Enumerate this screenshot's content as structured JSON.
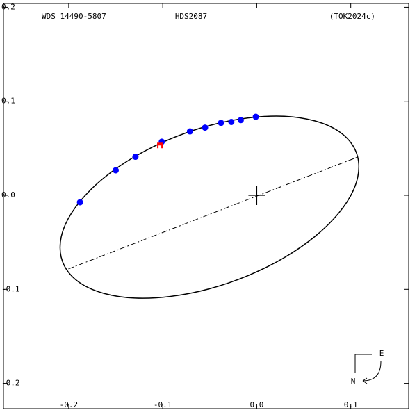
{
  "chart_data": {
    "type": "orbit",
    "title": "WDS 14490-5807",
    "subtitle": "HDS2087",
    "reference": "(TOK2024c)",
    "compass": {
      "east": "E",
      "north": "N"
    },
    "xlim": [
      -0.2694,
      0.1616
    ],
    "ylim": [
      -0.2269,
      0.204
    ],
    "xticks": [
      -0.2,
      -0.1,
      {
        "value": 0,
        "label": "0.0"
      },
      0.1
    ],
    "yticks": [
      0.2,
      0.1,
      {
        "value": 0,
        "label": "0.0"
      },
      -0.1,
      -0.2
    ],
    "orbit": {
      "color": "#000000",
      "x": [
        0.1086,
        0.1032,
        0.0873,
        0.062,
        0.0292,
        -0.0091,
        -0.0503,
        -0.0915,
        -0.1298,
        -0.1626,
        -0.1879,
        -0.2038,
        -0.2092,
        -0.2038,
        -0.1879,
        -0.1626,
        -0.1298,
        -0.0915,
        -0.0503,
        -0.0091,
        0.0292,
        0.062,
        0.0873,
        0.1032
      ],
      "y": [
        0.0303,
        0.0513,
        0.068,
        0.0791,
        0.0841,
        0.0823,
        0.0742,
        0.0601,
        0.0411,
        0.0185,
        -0.0064,
        -0.0315,
        -0.0555,
        -0.0765,
        -0.0932,
        -0.1043,
        -0.1093,
        -0.1075,
        -0.0994,
        -0.0853,
        -0.0663,
        -0.0437,
        -0.0188,
        0.0063
      ]
    },
    "line_of_apsides": {
      "color": "#000000",
      "x": [
        -0.2003,
        0.1072
      ],
      "y": [
        -0.0783,
        0.0406
      ]
    },
    "series": [
      {
        "color": "#0000ff",
        "x": [
          -0.188,
          -0.15,
          -0.129,
          -0.101,
          -0.071,
          -0.055,
          -0.038,
          -0.027,
          -0.017,
          -0.001
        ],
        "values": [
          -0.0074,
          0.0266,
          0.041,
          0.057,
          0.068,
          0.072,
          0.077,
          0.078,
          0.08,
          0.0835
        ]
      },
      {
        "color": "#ff0000",
        "x": [
          -0.103
        ],
        "values": [
          0.053
        ]
      }
    ]
  }
}
